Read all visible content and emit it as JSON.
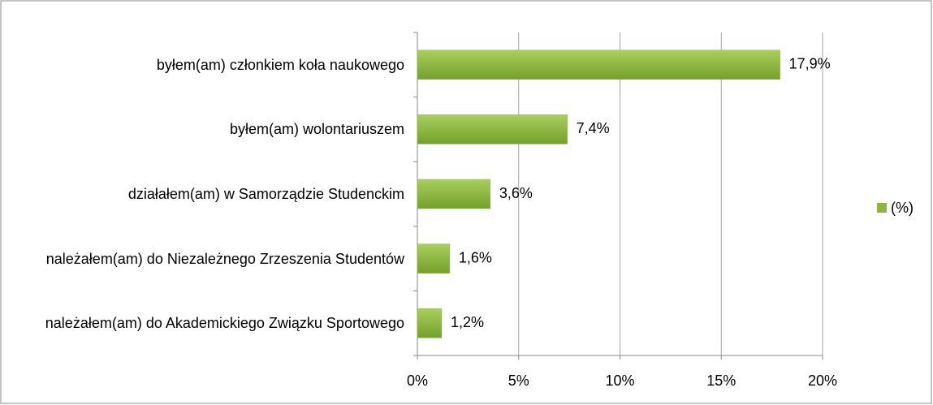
{
  "chart_data": {
    "type": "bar",
    "orientation": "horizontal",
    "categories": [
      "byłem(am) członkiem koła naukowego",
      "byłem(am) wolontariuszem",
      "działałem(am) w Samorządzie Studenckim",
      "należałem(am) do Niezależnego Zrzeszenia Studentów",
      "należałem(am) do Akademickiego Związku Sportowego"
    ],
    "series": [
      {
        "name": "(%)",
        "color": "#8db640",
        "values": [
          17.9,
          7.4,
          3.6,
          1.6,
          1.2
        ],
        "value_labels": [
          "17,9%",
          "7,4%",
          "3,6%",
          "1,6%",
          "1,2%"
        ]
      }
    ],
    "xlim": [
      0,
      20
    ],
    "xticks": [
      {
        "value": 0,
        "label": "0%"
      },
      {
        "value": 5,
        "label": "5%"
      },
      {
        "value": 10,
        "label": "10%"
      },
      {
        "value": 15,
        "label": "15%"
      },
      {
        "value": 20,
        "label": "20%"
      }
    ],
    "grid": true,
    "legend": "right"
  }
}
